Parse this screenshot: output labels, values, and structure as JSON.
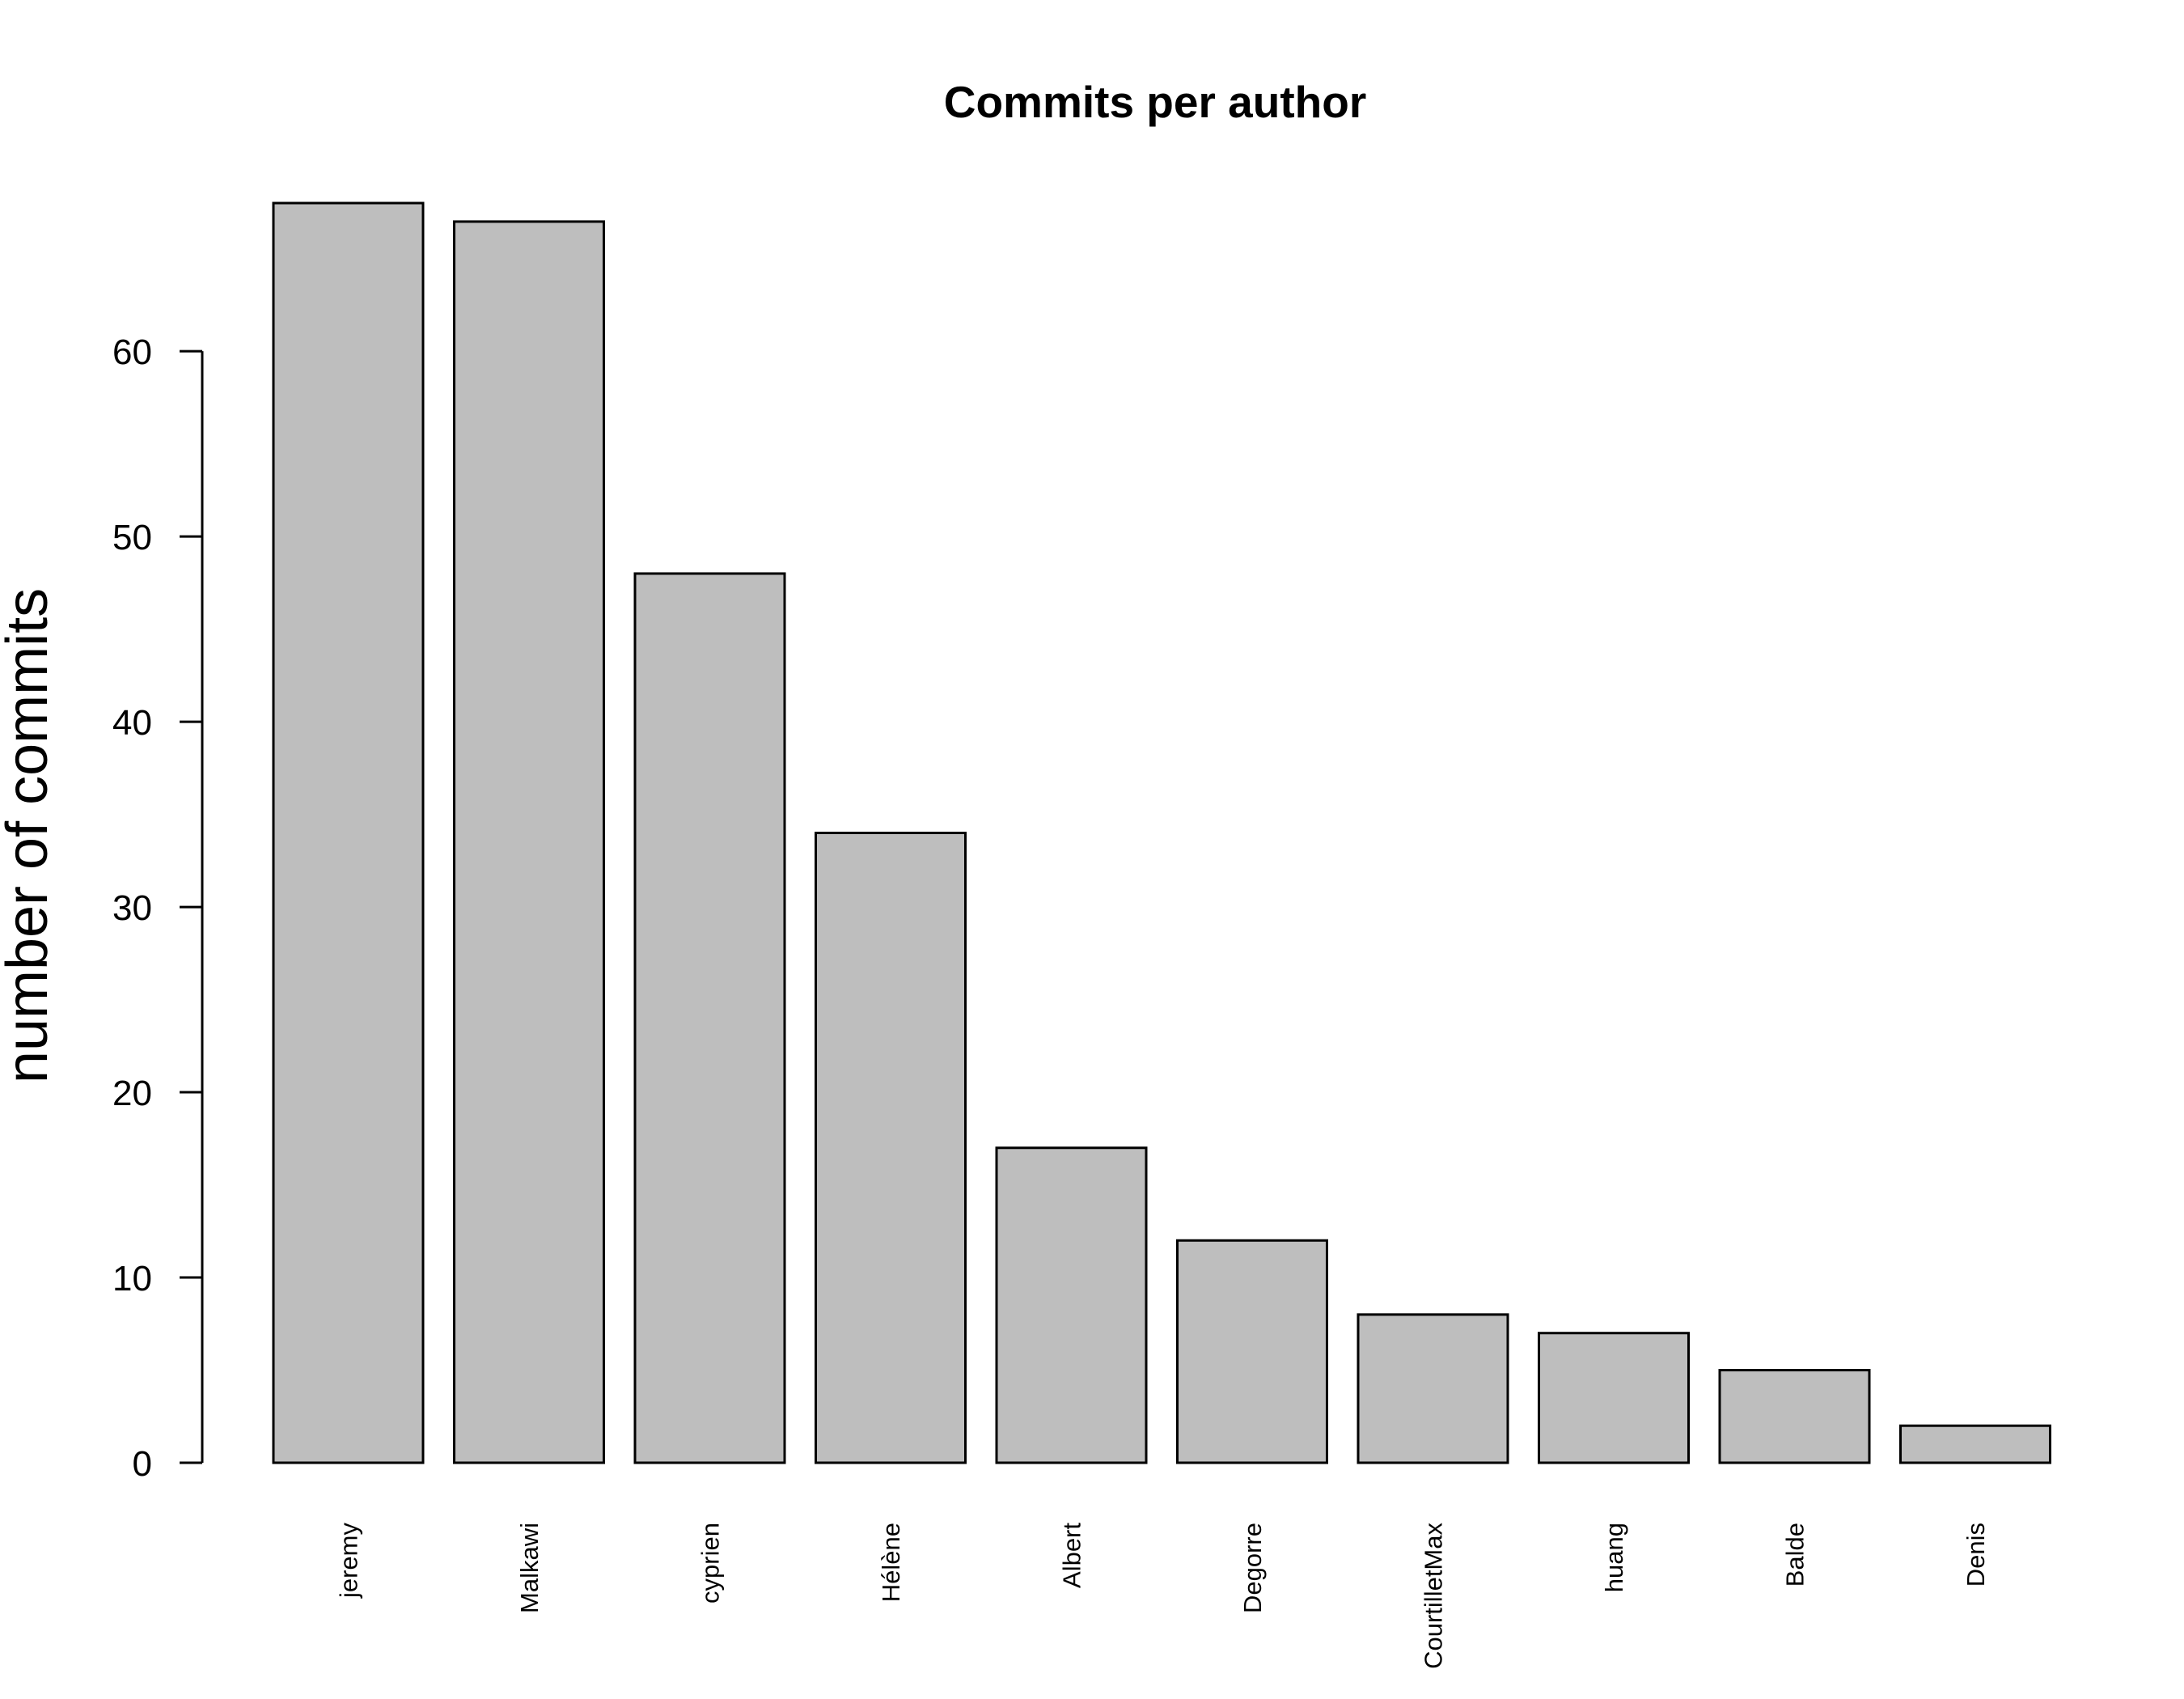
{
  "chart_data": {
    "type": "bar",
    "title": "Commits per author",
    "xlabel": "",
    "ylabel": "number of commits",
    "categories": [
      "jeremy",
      "Malkawi",
      "cyprien",
      "Hélène",
      "Albert",
      "Degorre",
      "CourtilletMax",
      "huang",
      "Balde",
      "Denis"
    ],
    "values": [
      68,
      67,
      48,
      34,
      17,
      12,
      8,
      7,
      5,
      2
    ],
    "ylim": [
      0,
      68
    ],
    "yticks": [
      0,
      10,
      20,
      30,
      40,
      50,
      60
    ],
    "bar_color": "#bebebe",
    "bar_border_color": "#000000",
    "grid": false,
    "legend": "none"
  }
}
